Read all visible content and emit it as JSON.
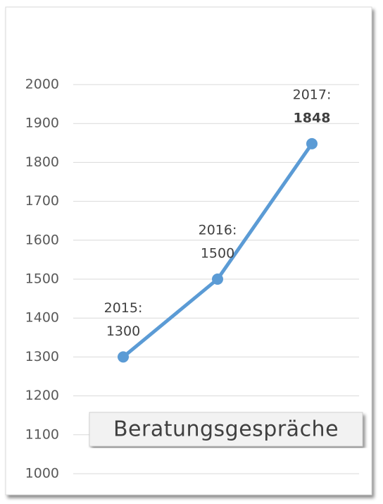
{
  "chart_data": {
    "type": "line",
    "title": "Beratungsgespräche",
    "categories": [
      "2015:",
      "2016:",
      "2017:"
    ],
    "series": [
      {
        "name": "Beratungsgespräche",
        "color": "#5b9bd5",
        "values": [
          1300,
          1500,
          1848
        ]
      }
    ],
    "ylim": [
      1000,
      2000
    ],
    "yticks": [
      1000,
      1100,
      1200,
      1300,
      1400,
      1500,
      1600,
      1700,
      1800,
      1900,
      2000
    ],
    "grid": true
  }
}
